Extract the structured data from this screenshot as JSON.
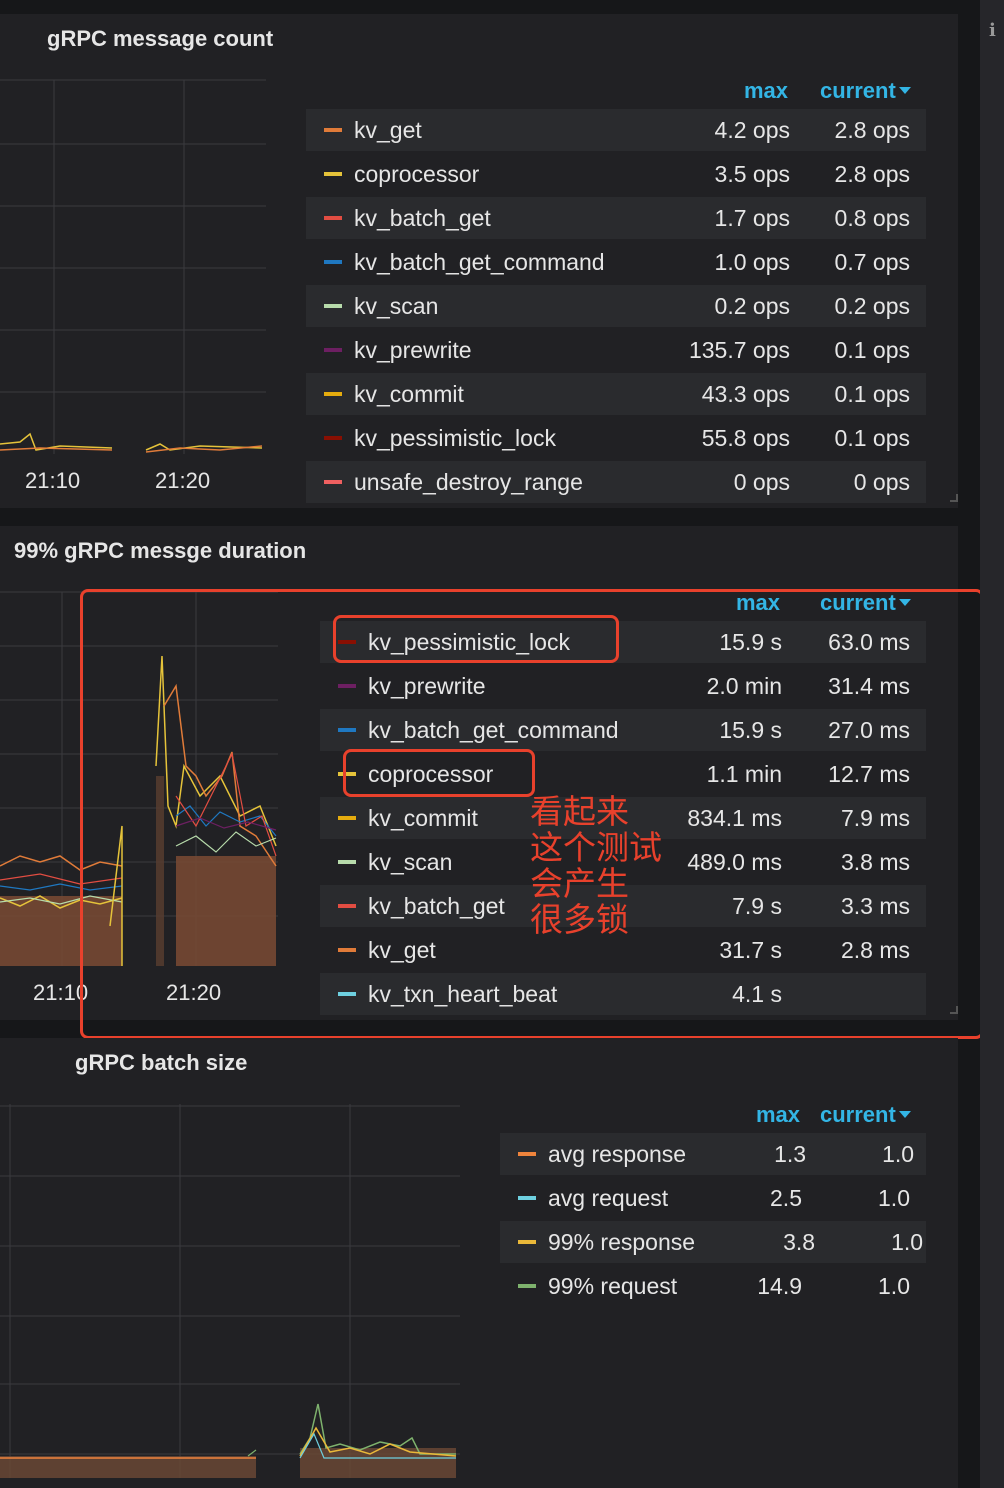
{
  "panels": {
    "message_count": {
      "title": "gRPC message count",
      "x_labels": [
        "21:10",
        "21:20"
      ],
      "legend": {
        "col_max": "max",
        "col_current": "current",
        "rows": [
          {
            "name": "kv_get",
            "max": "4.2 ops",
            "current": "2.8 ops",
            "color": "#e07b39"
          },
          {
            "name": "coprocessor",
            "max": "3.5 ops",
            "current": "2.8 ops",
            "color": "#e5c33a"
          },
          {
            "name": "kv_batch_get",
            "max": "1.7 ops",
            "current": "0.8 ops",
            "color": "#e24d42"
          },
          {
            "name": "kv_batch_get_command",
            "max": "1.0 ops",
            "current": "0.7 ops",
            "color": "#1f78c1"
          },
          {
            "name": "kv_scan",
            "max": "0.2 ops",
            "current": "0.2 ops",
            "color": "#b7dbab"
          },
          {
            "name": "kv_prewrite",
            "max": "135.7 ops",
            "current": "0.1 ops",
            "color": "#6d1f62"
          },
          {
            "name": "kv_commit",
            "max": "43.3 ops",
            "current": "0.1 ops",
            "color": "#e5ac0e"
          },
          {
            "name": "kv_pessimistic_lock",
            "max": "55.8 ops",
            "current": "0.1 ops",
            "color": "#890f02"
          },
          {
            "name": "unsafe_destroy_range",
            "max": "0 ops",
            "current": "0 ops",
            "color": "#ef6060"
          }
        ]
      }
    },
    "duration": {
      "title": "99% gRPC messge duration",
      "x_labels": [
        "21:10",
        "21:20"
      ],
      "legend": {
        "col_max": "max",
        "col_current": "current",
        "rows": [
          {
            "name": "kv_pessimistic_lock",
            "max": "15.9 s",
            "current": "63.0 ms",
            "color": "#890f02"
          },
          {
            "name": "kv_prewrite",
            "max": "2.0 min",
            "current": "31.4 ms",
            "color": "#6d1f62"
          },
          {
            "name": "kv_batch_get_command",
            "max": "15.9 s",
            "current": "27.0 ms",
            "color": "#1f78c1"
          },
          {
            "name": "coprocessor",
            "max": "1.1 min",
            "current": "12.7 ms",
            "color": "#e5c33a"
          },
          {
            "name": "kv_commit",
            "max": "834.1 ms",
            "current": "7.9 ms",
            "color": "#e5ac0e"
          },
          {
            "name": "kv_scan",
            "max": "489.0 ms",
            "current": "3.8 ms",
            "color": "#b7dbab"
          },
          {
            "name": "kv_batch_get",
            "max": "7.9 s",
            "current": "3.3 ms",
            "color": "#e24d42"
          },
          {
            "name": "kv_get",
            "max": "31.7 s",
            "current": "2.8 ms",
            "color": "#e07b39"
          },
          {
            "name": "kv_txn_heart_beat",
            "max": "4.1 s",
            "current": "",
            "color": "#6ed0e0"
          }
        ]
      },
      "annotation": "看起来\n这个测试\n会产生\n很多锁"
    },
    "batch_size": {
      "title": "gRPC batch size",
      "legend": {
        "col_max": "max",
        "col_current": "current",
        "rows": [
          {
            "name": "avg response",
            "max": "1.3",
            "current": "1.0",
            "color": "#ef843c"
          },
          {
            "name": "avg request",
            "max": "2.5",
            "current": "1.0",
            "color": "#6ed0e0"
          },
          {
            "name": "99% response",
            "max": "3.8",
            "current": "1.0",
            "color": "#eab839"
          },
          {
            "name": "99% request",
            "max": "14.9",
            "current": "1.0",
            "color": "#7eb26d"
          }
        ]
      }
    }
  }
}
